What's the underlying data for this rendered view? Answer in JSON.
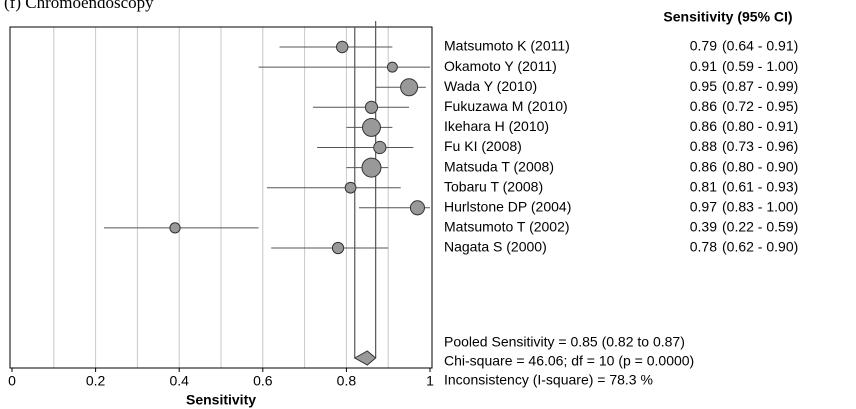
{
  "chart_data": {
    "type": "forest",
    "title": "(f)   Chromoendoscopy",
    "column_header": "Sensitivity (95% CI)",
    "xlabel": "Sensitivity",
    "categories": [
      "Matsumoto K (2011)",
      "Okamoto Y (2011)",
      "Wada Y (2010)",
      "Fukuzawa M (2010)",
      "Ikehara H (2010)",
      "Fu KI (2008)",
      "Matsuda T (2008)",
      "Tobaru T (2008)",
      "Hurlstone DP (2004)",
      "Matsumoto T (2002)",
      "Nagata S (2000)"
    ],
    "values": [
      0.79,
      0.91,
      0.95,
      0.86,
      0.86,
      0.88,
      0.86,
      0.81,
      0.97,
      0.39,
      0.78
    ],
    "lower": [
      0.64,
      0.59,
      0.87,
      0.72,
      0.8,
      0.73,
      0.8,
      0.61,
      0.83,
      0.22,
      0.62
    ],
    "upper": [
      0.91,
      1,
      0.99,
      0.95,
      0.91,
      0.96,
      0.9,
      0.93,
      1,
      0.59,
      0.9
    ],
    "ci_labels": [
      "(0.64 - 0.91)",
      "(0.59 - 1.00)",
      "(0.87 - 0.99)",
      "(0.72 - 0.95)",
      "(0.80 - 0.91)",
      "(0.73 - 0.96)",
      "(0.80 - 0.90)",
      "(0.61 - 0.93)",
      "(0.83 - 1.00)",
      "(0.22 - 0.59)",
      "(0.62 - 0.90)"
    ],
    "pooled": {
      "value": 0.85,
      "lower": 0.82,
      "upper": 0.87
    },
    "stats": [
      "Pooled Sensitivity = 0.85 (0.82 to 0.87)",
      "Chi-square = 46.06; df =  10 (p = 0.0000)",
      "Inconsistency (I-square) = 78.3 %"
    ],
    "xlim": [
      0,
      1
    ],
    "xticks": [
      0,
      0.2,
      0.4,
      0.6,
      0.8,
      1
    ],
    "grid_ticks": [
      0.1,
      0.2,
      0.3,
      0.4,
      0.5,
      0.6,
      0.7,
      0.8,
      0.9
    ],
    "marker_color": "#999999"
  }
}
